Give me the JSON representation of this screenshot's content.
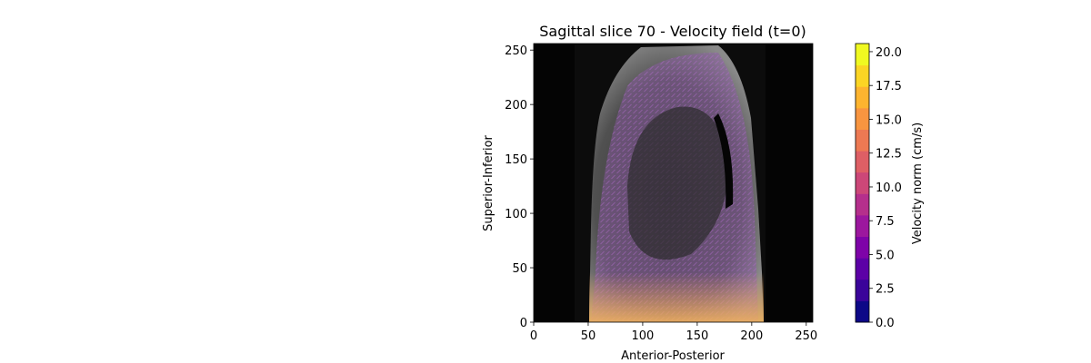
{
  "chart_data": {
    "type": "heatmap",
    "title": "Sagittal slice 70 - Velocity field (t=0)",
    "xlabel": "Anterior-Posterior",
    "ylabel": "Superior-Inferior",
    "xlim": [
      0,
      256
    ],
    "ylim": [
      0,
      256
    ],
    "x_ticks": [
      0,
      50,
      100,
      150,
      200,
      250
    ],
    "y_ticks": [
      0,
      50,
      100,
      150,
      200,
      250
    ],
    "x_tick_labels": [
      "0",
      "50",
      "100",
      "150",
      "200",
      "250"
    ],
    "y_tick_labels": [
      "0",
      "50",
      "100",
      "150",
      "200",
      "250"
    ],
    "grid": false,
    "colorbar": {
      "label": "Velocity norm (cm/s)",
      "colormap": "plasma",
      "range": [
        0,
        20.6
      ],
      "levels": 16,
      "ticks": [
        0.0,
        2.5,
        5.0,
        7.5,
        10.0,
        12.5,
        15.0,
        17.5,
        20.0
      ],
      "tick_labels": [
        "0.0",
        "2.5",
        "5.0",
        "7.5",
        "10.0",
        "12.5",
        "15.0",
        "17.5",
        "20.0"
      ],
      "colors": [
        "#0d0887",
        "#3a049a",
        "#5c01a6",
        "#7e03a8",
        "#9c179e",
        "#b52f8c",
        "#cc4778",
        "#de5f65",
        "#ed7953",
        "#f89540",
        "#fdb42f",
        "#fbd524",
        "#f0f921"
      ]
    }
  }
}
